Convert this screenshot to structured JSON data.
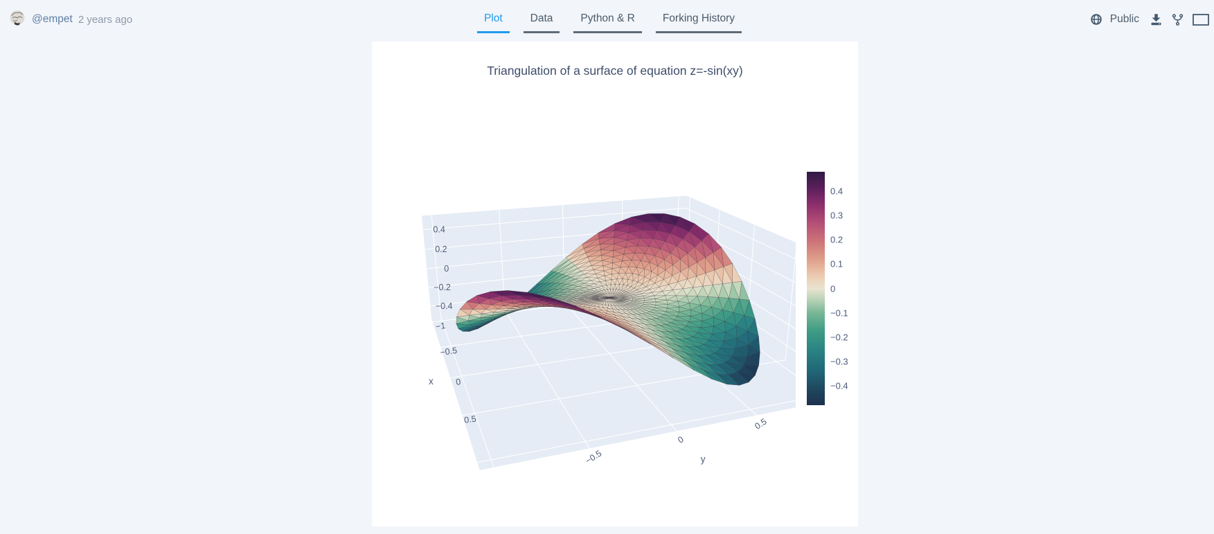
{
  "header": {
    "user": "@empet",
    "time": "2 years ago",
    "tabs": [
      {
        "label": "Plot",
        "active": true
      },
      {
        "label": "Data",
        "active": false
      },
      {
        "label": "Python & R",
        "active": false
      },
      {
        "label": "Forking History",
        "active": false
      }
    ],
    "visibility": "Public",
    "icons": [
      "globe-icon",
      "download-icon",
      "fork-icon",
      "embed-icon"
    ]
  },
  "colors": {
    "accent_blue": "#1e9bef",
    "page_background": "#f2f5f9",
    "card_background": "#ffffff",
    "header_icon": "#44596e"
  },
  "chart_data": {
    "type": "mesh3d",
    "title": "Triangulation of a surface of equation z=-sin(xy)",
    "equation": "z = -sin(x*y)",
    "domain": {
      "shape": "disk",
      "radius": 1,
      "center": [
        0,
        0
      ]
    },
    "z_range": [
      -0.48,
      0.48
    ],
    "axes": {
      "x": {
        "label": "x",
        "ticks": [
          -1,
          -0.5,
          0,
          0.5
        ],
        "range": [
          -1.07,
          1.07
        ]
      },
      "y": {
        "label": "y",
        "ticks": [
          -0.5,
          0,
          0.5
        ],
        "range": [
          -1.07,
          1.07
        ]
      },
      "z": {
        "label": "",
        "ticks": [
          0.4,
          0.2,
          0,
          -0.2,
          -0.4
        ],
        "range": [
          -0.54,
          0.54
        ]
      }
    },
    "grid": true,
    "gridcolor": "#ffffff",
    "background": "#e6ecf5",
    "tick_color": "#4e5c77",
    "edge_color": "rgba(42,38,48,0.45)",
    "colorbar": {
      "ticks": [
        0.4,
        0.3,
        0.2,
        0.1,
        0,
        -0.1,
        -0.2,
        -0.3,
        -0.4
      ]
    },
    "colorscale": [
      [
        0,
        "#1d304e"
      ],
      [
        0.075,
        "#1f4a61"
      ],
      [
        0.15,
        "#216878"
      ],
      [
        0.235,
        "#2a8383"
      ],
      [
        0.32,
        "#3f9c85"
      ],
      [
        0.4,
        "#7cb998"
      ],
      [
        0.46,
        "#c2d6bb"
      ],
      [
        0.5,
        "#e9e3d0"
      ],
      [
        0.55,
        "#eccdb3"
      ],
      [
        0.62,
        "#e0a28c"
      ],
      [
        0.7,
        "#cd7478"
      ],
      [
        0.78,
        "#b44f76"
      ],
      [
        0.86,
        "#8c2e6c"
      ],
      [
        0.93,
        "#5c1f5c"
      ],
      [
        1,
        "#301a45"
      ]
    ],
    "mesh": {
      "rings": 13,
      "points_per_ring": 48
    },
    "view": {
      "projection": "perspective",
      "azimuth_deg": -20,
      "elevation_deg": 20,
      "camera_distance": 4.5,
      "z_aspect": 0.75
    }
  }
}
